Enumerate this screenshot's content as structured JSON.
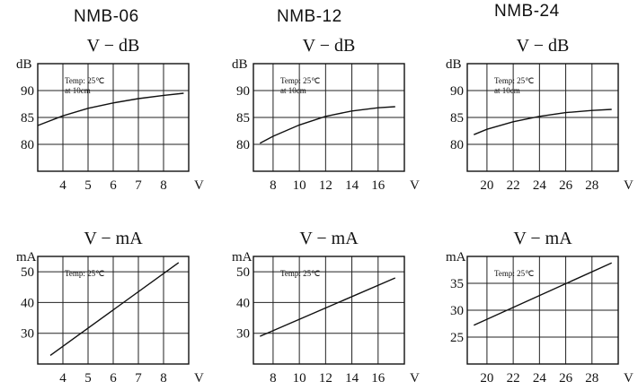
{
  "models": [
    "NMB-06",
    "NMB-12",
    "NMB-24"
  ],
  "chart_data": [
    {
      "model": "NMB-06",
      "type": "line",
      "title": "V − dB",
      "y_unit": "dB",
      "x_unit": "V",
      "note": [
        "Temp: 25℃",
        "at 10cm"
      ],
      "xlim": [
        3,
        9
      ],
      "ylim": [
        75,
        95
      ],
      "x_ticks": [
        4,
        5,
        6,
        7,
        8
      ],
      "y_ticks": [
        80,
        85,
        90
      ],
      "grid_x": [
        4,
        5,
        6,
        7,
        8
      ],
      "grid_y": [
        80,
        85,
        90
      ],
      "x": [
        3,
        4,
        5,
        6,
        7,
        8,
        8.8
      ],
      "y": [
        83.5,
        85.3,
        86.7,
        87.7,
        88.5,
        89.1,
        89.5
      ],
      "grid": true
    },
    {
      "model": "NMB-12",
      "type": "line",
      "title": "V − dB",
      "y_unit": "dB",
      "x_unit": "V",
      "note": [
        "Temp: 25℃",
        "at 10cm"
      ],
      "xlim": [
        6.5,
        18
      ],
      "ylim": [
        75,
        95
      ],
      "x_ticks": [
        8,
        10,
        12,
        14,
        16
      ],
      "y_ticks": [
        80,
        85,
        90
      ],
      "grid_x": [
        8,
        10,
        12,
        14,
        16
      ],
      "grid_y": [
        80,
        85,
        90
      ],
      "x": [
        7,
        8,
        10,
        12,
        14,
        16,
        17.3
      ],
      "y": [
        80.2,
        81.5,
        83.6,
        85.2,
        86.2,
        86.8,
        87
      ],
      "grid": true
    },
    {
      "model": "NMB-24",
      "type": "line",
      "title": "V − dB",
      "y_unit": "dB",
      "x_unit": "V",
      "note": [
        "Temp: 25℃",
        "at 10cm"
      ],
      "xlim": [
        18.5,
        30
      ],
      "ylim": [
        75,
        95
      ],
      "x_ticks": [
        20,
        22,
        24,
        26,
        28
      ],
      "y_ticks": [
        80,
        85,
        90
      ],
      "grid_x": [
        20,
        22,
        24,
        26,
        28
      ],
      "grid_y": [
        80,
        85,
        90
      ],
      "x": [
        19,
        20,
        22,
        24,
        26,
        28,
        29.5
      ],
      "y": [
        81.8,
        82.8,
        84.2,
        85.2,
        85.9,
        86.3,
        86.5
      ],
      "grid": true
    },
    {
      "model": "NMB-06",
      "type": "line",
      "title": "V − mA",
      "y_unit": "mA",
      "x_unit": "V",
      "note": [
        "Temp: 25℃"
      ],
      "xlim": [
        3,
        9
      ],
      "ylim": [
        20,
        55
      ],
      "x_ticks": [
        4,
        5,
        6,
        7,
        8
      ],
      "y_ticks": [
        30,
        40,
        50
      ],
      "grid_x": [
        4,
        5,
        6,
        7,
        8
      ],
      "grid_y": [
        30,
        40,
        50
      ],
      "x": [
        3.5,
        8.6
      ],
      "y": [
        22.8,
        53
      ],
      "grid": true
    },
    {
      "model": "NMB-12",
      "type": "line",
      "title": "V − mA",
      "y_unit": "mA",
      "x_unit": "V",
      "note": [
        "Temp: 25℃"
      ],
      "xlim": [
        6.5,
        18
      ],
      "ylim": [
        20,
        55
      ],
      "x_ticks": [
        8,
        10,
        12,
        14,
        16
      ],
      "y_ticks": [
        30,
        40,
        50
      ],
      "grid_x": [
        8,
        10,
        12,
        14,
        16
      ],
      "grid_y": [
        30,
        40,
        50
      ],
      "x": [
        7,
        17.3
      ],
      "y": [
        29,
        48
      ],
      "grid": true
    },
    {
      "model": "NMB-24",
      "type": "line",
      "title": "V − mA",
      "y_unit": "mA",
      "x_unit": "V",
      "note": [
        "Temp: 25℃"
      ],
      "xlim": [
        18.5,
        30
      ],
      "ylim": [
        20,
        40
      ],
      "x_ticks": [
        20,
        22,
        24,
        26,
        28
      ],
      "y_ticks": [
        25,
        30,
        35
      ],
      "grid_x": [
        20,
        22,
        24,
        26,
        28
      ],
      "grid_y": [
        25,
        30,
        35
      ],
      "x": [
        19,
        29.5
      ],
      "y": [
        27.2,
        38.8
      ],
      "grid": true
    }
  ]
}
